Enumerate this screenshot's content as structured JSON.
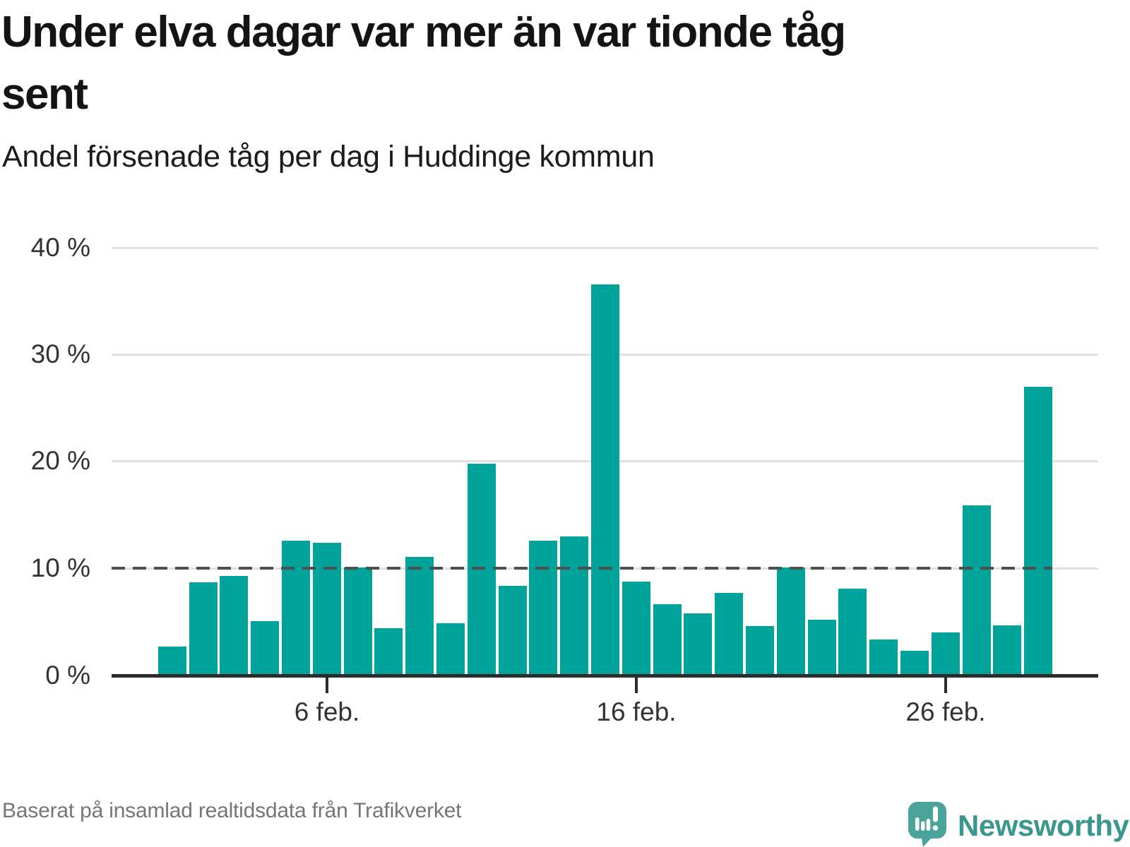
{
  "header": {
    "title": "Under elva dagar var mer än var tionde tåg sent",
    "title_line1": "Under elva dagar var mer än var tionde tåg",
    "title_line2": "sent",
    "subtitle": "Andel försenade tåg per dag i Huddinge kommun"
  },
  "chart_data": {
    "type": "bar",
    "title": "Under elva dagar var mer än var tionde tåg sent",
    "subtitle": "Andel försenade tåg per dag i Huddinge kommun",
    "unit": "%",
    "categories": [
      "1 feb.",
      "2 feb.",
      "3 feb.",
      "4 feb.",
      "5 feb.",
      "6 feb.",
      "7 feb.",
      "8 feb.",
      "9 feb.",
      "10 feb.",
      "11 feb.",
      "12 feb.",
      "13 feb.",
      "14 feb.",
      "15 feb.",
      "16 feb.",
      "17 feb.",
      "18 feb.",
      "19 feb.",
      "20 feb.",
      "21 feb.",
      "22 feb.",
      "23 feb.",
      "24 feb.",
      "25 feb.",
      "26 feb.",
      "27 feb.",
      "28 feb.",
      "29 feb."
    ],
    "values": [
      2.7,
      8.7,
      9.3,
      5.1,
      12.6,
      12.4,
      10.1,
      4.4,
      11.1,
      4.9,
      19.8,
      8.4,
      12.6,
      13.0,
      36.6,
      8.8,
      6.7,
      5.8,
      7.7,
      4.6,
      10.1,
      5.2,
      8.1,
      3.4,
      2.3,
      4.0,
      15.9,
      4.7,
      27.0
    ],
    "reference_line": 10,
    "ylim": [
      0,
      40
    ],
    "yticks": [
      {
        "v": 0,
        "label": "0 %"
      },
      {
        "v": 10,
        "label": "10 %"
      },
      {
        "v": 20,
        "label": "20 %"
      },
      {
        "v": 30,
        "label": "30 %"
      },
      {
        "v": 40,
        "label": "40 %"
      }
    ],
    "x_ticks": [
      {
        "day": 6,
        "label": "6 feb."
      },
      {
        "day": 16,
        "label": "16 feb."
      },
      {
        "day": 26,
        "label": "26 feb."
      }
    ],
    "grid": true,
    "legend": "none"
  },
  "footer": {
    "source": "Baserat på insamlad realtidsdata från Trafikverket",
    "brand": "Newsworthy"
  },
  "colors": {
    "bar": "#00a39a",
    "reference_line": "#4f4f4f",
    "grid": "#e1e1e1",
    "axis": "#2c2c2c",
    "logo_bubble": "#4ba49c",
    "brand_text": "#3b968e",
    "footer_text": "#767676"
  }
}
